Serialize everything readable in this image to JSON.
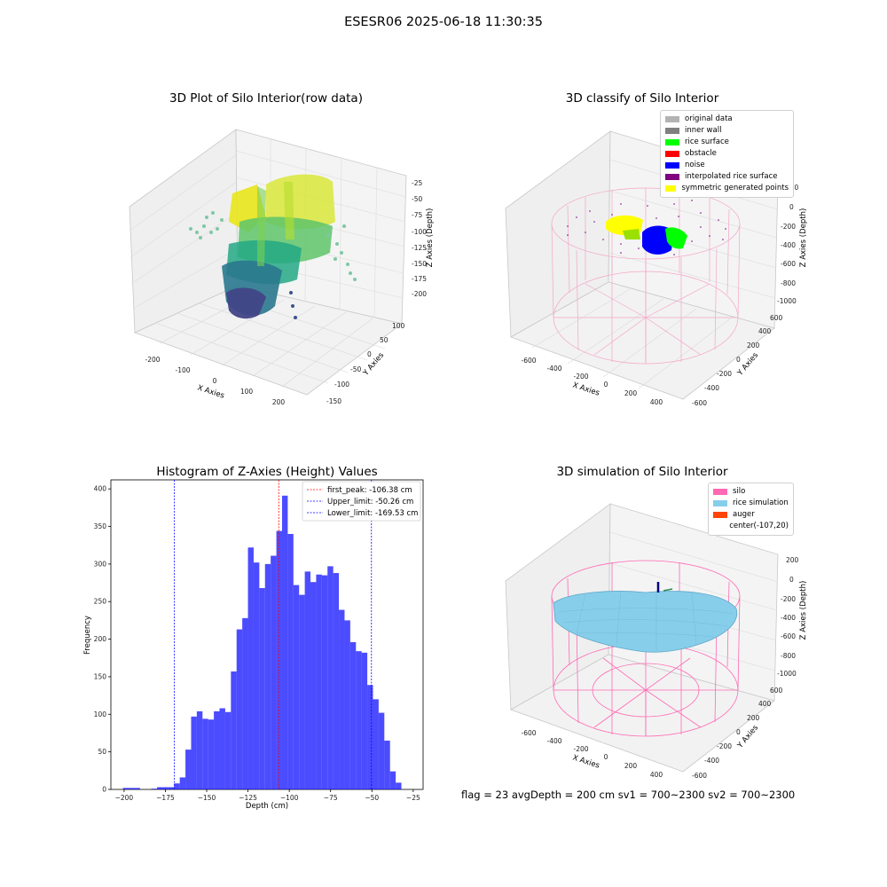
{
  "suptitle": "ESESR06 2025-06-18 11:30:35",
  "panels": {
    "raw": {
      "title": "3D Plot of Silo Interior(row data)",
      "xlabel": "X Axies",
      "ylabel": "Y Axies",
      "zlabel": "Z Axies (Depth)",
      "xticks": [
        "-200",
        "-100",
        "0",
        "100",
        "200"
      ],
      "yticks": [
        "-150",
        "-100",
        "-50",
        "0",
        "50",
        "100"
      ],
      "zticks": [
        "-25",
        "-50",
        "-75",
        "-100",
        "-125",
        "-150",
        "-175",
        "-200"
      ]
    },
    "classify": {
      "title": "3D classify of Silo Interior",
      "xlabel": "X Axies",
      "ylabel": "Y Axies",
      "zlabel": "Z Axies (Depth)",
      "xticks": [
        "-600",
        "-400",
        "-200",
        "0",
        "200",
        "400"
      ],
      "yticks": [
        "-600",
        "-400",
        "-200",
        "0",
        "200",
        "400",
        "600"
      ],
      "zticks": [
        "200",
        "0",
        "-200",
        "-400",
        "-600",
        "-800",
        "-1000"
      ],
      "legend": [
        {
          "label": "original data",
          "color": "#b3b3b3"
        },
        {
          "label": "inner wall",
          "color": "#808080"
        },
        {
          "label": "rice surface",
          "color": "#00ff00"
        },
        {
          "label": "obstacle",
          "color": "#ff0000"
        },
        {
          "label": "noise",
          "color": "#0000ff"
        },
        {
          "label": "interpolated rice surface",
          "color": "#800080"
        },
        {
          "label": "symmetric generated points",
          "color": "#ffff00"
        }
      ]
    },
    "simulation": {
      "title": "3D simulation of Silo Interior",
      "xlabel": "X Axies",
      "ylabel": "Y Axies",
      "zlabel": "Z Axies (Depth)",
      "xticks": [
        "-600",
        "-400",
        "-200",
        "0",
        "200",
        "400"
      ],
      "yticks": [
        "-600",
        "-400",
        "-200",
        "0",
        "200",
        "400",
        "600"
      ],
      "zticks": [
        "200",
        "0",
        "-200",
        "-400",
        "-600",
        "-800",
        "-1000"
      ],
      "legend": [
        {
          "label": "silo",
          "color": "#ff69b4"
        },
        {
          "label": "rice simulation",
          "color": "#87ceeb"
        },
        {
          "label": "auger",
          "color": "#ff4500"
        },
        {
          "label": "center(-107,20)",
          "color": ""
        }
      ]
    }
  },
  "chart_data": {
    "type": "bar",
    "title": "Histogram of Z-Axies (Height) Values",
    "xlabel": "Depth (cm)",
    "ylabel": "Frequency",
    "xlim": [
      -208,
      -19
    ],
    "ylim": [
      0,
      412
    ],
    "xticks": [
      -200,
      -175,
      -150,
      -125,
      -100,
      -75,
      -50,
      -25
    ],
    "yticks": [
      0,
      50,
      100,
      150,
      200,
      250,
      300,
      350,
      400
    ],
    "bar_color": "#0000ff",
    "bin_start": -200.7,
    "bin_width": 3.44,
    "values": [
      2,
      2,
      2,
      0,
      0,
      1,
      3,
      3,
      3,
      8,
      16,
      53,
      97,
      104,
      94,
      93,
      104,
      108,
      103,
      157,
      213,
      228,
      322,
      302,
      268,
      300,
      311,
      344,
      391,
      340,
      272,
      259,
      290,
      276,
      286,
      285,
      297,
      288,
      239,
      225,
      196,
      184,
      182,
      139,
      120,
      102,
      65,
      24,
      9
    ],
    "lines": [
      {
        "label": "first_peak: -106.38 cm",
        "x": -106.38,
        "color": "#ff0000"
      },
      {
        "label": "Upper_limit: -50.26 cm",
        "x": -50.26,
        "color": "#0000ff"
      },
      {
        "label": "Lower_limit: -169.53 cm",
        "x": -169.53,
        "color": "#0000ff"
      }
    ],
    "legend_position": "upper right"
  },
  "footer": "flag = 23  avgDepth = 200 cm  sv1 = 700~2300  sv2 = 700~2300"
}
